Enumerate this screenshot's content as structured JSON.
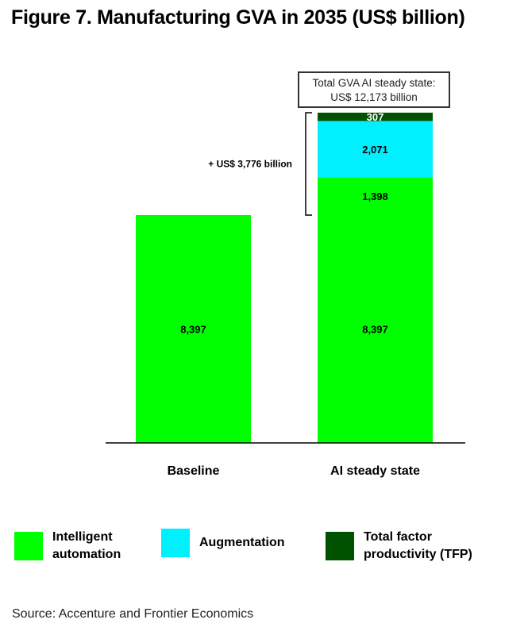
{
  "title": "Figure 7. Manufacturing GVA in 2035 (US$ billion)",
  "total_box": {
    "line1": "Total GVA AI steady state:",
    "line2": "US$ 12,173 billion"
  },
  "bracket_label": "+ US$ 3,776 billion",
  "source": "Source: Accenture and Frontier Economics",
  "chart_data": {
    "type": "bar",
    "stacked": true,
    "categories": [
      "Baseline",
      "AI steady state"
    ],
    "series": [
      {
        "name": "Intelligent automation",
        "legend": [
          "Intelligent",
          "automation"
        ],
        "color": "#00ff00",
        "values": [
          8397,
          9795
        ],
        "labels": [
          "8,397",
          "1,398"
        ],
        "segments": [
          [
            8397
          ],
          [
            8397,
            1398
          ]
        ]
      },
      {
        "name": "Augmentation",
        "legend": [
          "Augmentation"
        ],
        "color": "#00f0ff",
        "values": [
          0,
          2071
        ],
        "labels": [
          "",
          "2,071"
        ]
      },
      {
        "name": "Total factor productivity (TFP)",
        "legend": [
          "Total factor",
          "productivity (TFP)"
        ],
        "color": "#005200",
        "values": [
          0,
          307
        ],
        "labels": [
          "",
          "307"
        ]
      }
    ],
    "stacks": [
      [
        {
          "value": 8397,
          "label": "8,397",
          "color": "#00ff00"
        }
      ],
      [
        {
          "value": 8397,
          "label": "8,397",
          "color": "#00ff00"
        },
        {
          "value": 1398,
          "label": "1,398",
          "color": "#00ff00"
        },
        {
          "value": 2071,
          "label": "2,071",
          "color": "#00f0ff"
        },
        {
          "value": 307,
          "label": "307",
          "color": "#005200",
          "text_color": "#ffffff"
        }
      ]
    ],
    "xlabel": "",
    "ylabel": "",
    "ylim": [
      0,
      12173
    ],
    "grid": false,
    "legend_position": "bottom"
  }
}
